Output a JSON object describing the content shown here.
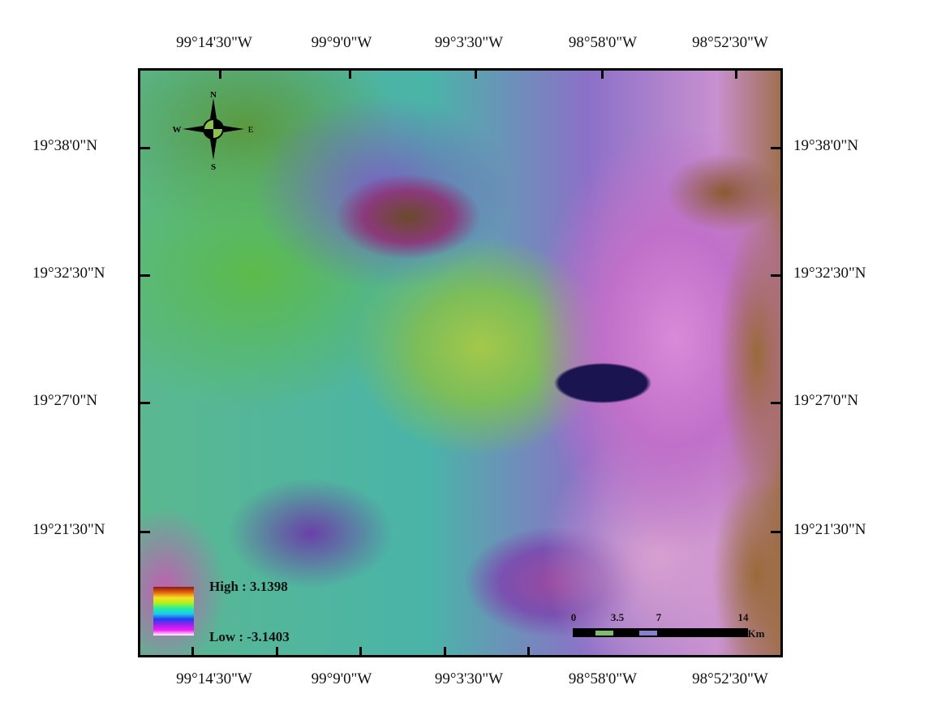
{
  "map": {
    "x_labels": [
      "99°14'30\"W",
      "99°9'0\"W",
      "99°3'30\"W",
      "98°58'0\"W",
      "98°52'30\"W"
    ],
    "y_labels": [
      "19°38'0\"N",
      "19°32'30\"N",
      "19°27'0\"N",
      "19°21'30\"N"
    ],
    "legend": {
      "high": "High : 3.1398",
      "low": "Low : -3.1403",
      "colormap": [
        "#8a1a10",
        "#e06010",
        "#f8e020",
        "#b0f020",
        "#20f0a0",
        "#20c8f0",
        "#2040f0",
        "#a020f0",
        "#f020f0",
        "#ffffff"
      ]
    },
    "scale_bar": {
      "labels": [
        "0",
        "3.5",
        "7",
        "14"
      ],
      "unit": "Km"
    },
    "compass": {
      "n": "N",
      "s": "S",
      "e": "E",
      "w": "W"
    }
  }
}
